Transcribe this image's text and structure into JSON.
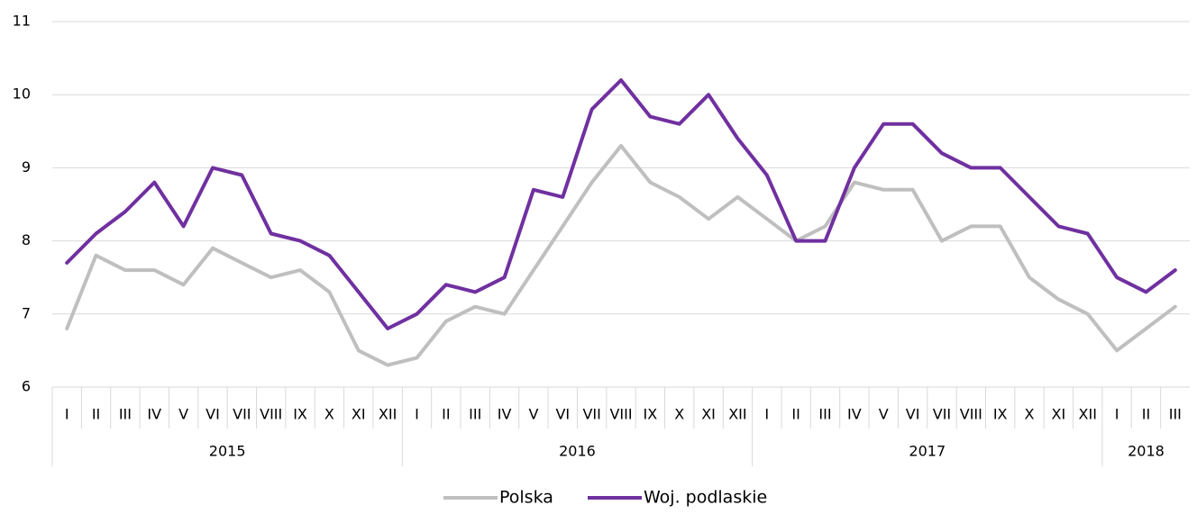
{
  "chart_data": {
    "type": "line",
    "groups": [
      {
        "label": "2015",
        "categories": [
          "I",
          "II",
          "III",
          "IV",
          "V",
          "VI",
          "VII",
          "VIII",
          "IX",
          "X",
          "XI",
          "XII"
        ]
      },
      {
        "label": "2016",
        "categories": [
          "I",
          "II",
          "III",
          "IV",
          "V",
          "VI",
          "VII",
          "VIII",
          "IX",
          "X",
          "XI",
          "XII"
        ]
      },
      {
        "label": "2017",
        "categories": [
          "I",
          "II",
          "III",
          "IV",
          "V",
          "VI",
          "VII",
          "VIII",
          "IX",
          "X",
          "XI",
          "XII"
        ]
      },
      {
        "label": "2018",
        "categories": [
          "I",
          "II",
          "III"
        ]
      }
    ],
    "series": [
      {
        "name": "Polska",
        "color": "#bfbfbf",
        "values": [
          6.8,
          7.8,
          7.6,
          7.6,
          7.4,
          7.9,
          7.7,
          7.5,
          7.6,
          7.3,
          6.5,
          6.3,
          6.4,
          6.9,
          7.1,
          7.0,
          7.6,
          8.2,
          8.8,
          9.3,
          8.8,
          8.6,
          8.3,
          8.6,
          8.3,
          8.0,
          8.2,
          8.8,
          8.7,
          8.7,
          8.0,
          8.2,
          8.2,
          7.5,
          7.2,
          7.0,
          6.5,
          6.8,
          7.1
        ]
      },
      {
        "name": "Woj. podlaskie",
        "color": "#7030a0",
        "values": [
          7.7,
          8.1,
          8.4,
          8.8,
          8.2,
          9.0,
          8.9,
          8.1,
          8.0,
          7.8,
          7.3,
          6.8,
          7.0,
          7.4,
          7.3,
          7.5,
          8.7,
          8.6,
          9.8,
          10.2,
          9.7,
          9.6,
          10.0,
          9.4,
          8.9,
          8.0,
          8.0,
          9.0,
          9.6,
          9.6,
          9.2,
          9.0,
          9.0,
          8.6,
          8.2,
          8.1,
          7.5,
          7.3,
          7.6
        ]
      }
    ],
    "ylim": [
      6,
      11
    ],
    "yticks": [
      6,
      7,
      8,
      9,
      10,
      11
    ],
    "grid": true,
    "legend": "bottom"
  }
}
